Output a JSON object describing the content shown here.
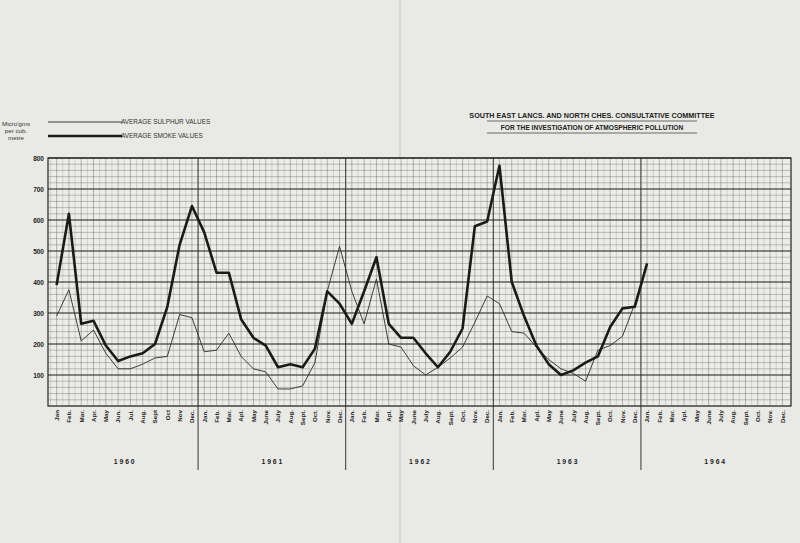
{
  "chart_data": {
    "type": "line",
    "title": "SOUTH EAST LANCS. AND NORTH CHES. CONSULTATIVE COMMITTEE",
    "subtitle": "FOR THE INVESTIGATION OF ATMOSPHERIC POLLUTION",
    "y_label": "Micro'gms per cub. metre",
    "categories": [
      "Jan",
      "Feb.",
      "Mar.",
      "Apr.",
      "May",
      "Jun.",
      "Jul.",
      "Aug.",
      "Sept",
      "Oct",
      "Nov",
      "Dec.",
      "Jan.",
      "Feb.",
      "Mar.",
      "Apl.",
      "May",
      "June",
      "July",
      "Aug.",
      "Sept.",
      "Oct.",
      "Nov.",
      "Dec.",
      "Jan.",
      "Feb.",
      "Mar.",
      "Apl.",
      "May",
      "June",
      "July",
      "Aug.",
      "Sept.",
      "Oct.",
      "Nov.",
      "Dec.",
      "Jan.",
      "Feb.",
      "Mar.",
      "Apl.",
      "May",
      "June",
      "July",
      "Aug.",
      "Sept.",
      "Oct.",
      "Nov.",
      "Dec.",
      "Jan.",
      "Feb.",
      "Mar.",
      "Apl.",
      "May",
      "June",
      "July",
      "Aug.",
      "Sept.",
      "Oct.",
      "Nov.",
      "Dec."
    ],
    "x_group_labels": [
      "1 9 6 0",
      "1 9 6 1",
      "1 9 6 2",
      "1 9 6 3",
      "1 9 6 4"
    ],
    "series": [
      {
        "name": "AVERAGE SULPHUR VALUES",
        "color": "#2a2a2a",
        "line_style": "thin",
        "values": [
          290,
          375,
          210,
          245,
          170,
          120,
          120,
          135,
          155,
          160,
          295,
          285,
          175,
          180,
          235,
          160,
          120,
          110,
          55,
          55,
          65,
          140,
          370,
          515,
          370,
          265,
          410,
          200,
          190,
          130,
          100,
          125,
          155,
          190,
          270,
          355,
          330,
          240,
          235,
          190,
          150,
          120,
          105,
          80,
          180,
          195,
          225,
          330,
          455,
          null,
          null,
          null,
          null,
          null,
          null,
          null,
          null,
          null,
          null,
          null
        ]
      },
      {
        "name": "AVERAGE SMOKE VALUES",
        "color": "#1a1a1a",
        "line_style": "thick",
        "values": [
          390,
          620,
          265,
          275,
          195,
          145,
          160,
          170,
          200,
          320,
          520,
          645,
          560,
          430,
          430,
          280,
          220,
          195,
          125,
          135,
          125,
          185,
          370,
          330,
          265,
          370,
          480,
          265,
          220,
          220,
          170,
          125,
          175,
          250,
          580,
          595,
          775,
          400,
          290,
          195,
          135,
          100,
          115,
          140,
          160,
          255,
          315,
          320,
          460,
          null,
          null,
          null,
          null,
          null,
          null,
          null,
          null,
          null,
          null,
          null
        ]
      }
    ],
    "ylim": [
      0,
      800
    ],
    "yticks": [
      100,
      200,
      300,
      400,
      500,
      600,
      700,
      800
    ],
    "grid": true
  }
}
